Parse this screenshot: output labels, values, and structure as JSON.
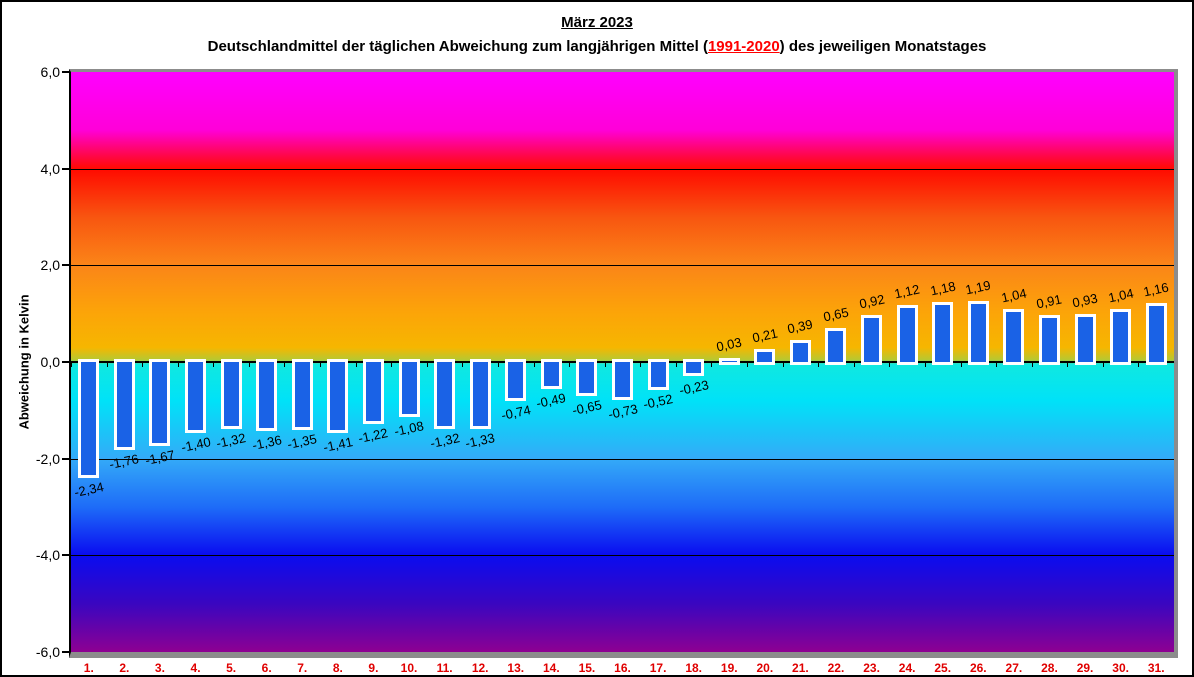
{
  "header": {
    "title": "März 2023",
    "subtitle_prefix": "Deutschlandmittel der täglichen Abweichung zum langjährigen Mittel (",
    "subtitle_highlight": "1991-2020",
    "subtitle_suffix": ") des jeweiligen Monatstages"
  },
  "chart_data": {
    "type": "bar",
    "title": "März 2023",
    "subtitle": "Deutschlandmittel der täglichen Abweichung zum langjährigen Mittel (1991-2020) des jeweiligen Monatstages",
    "xlabel": "",
    "ylabel": "Abweichung in Kelvin",
    "ylim": [
      -6.0,
      6.0
    ],
    "y_ticks": [
      {
        "value": 6,
        "label": "6,0"
      },
      {
        "value": 4,
        "label": "4,0"
      },
      {
        "value": 2,
        "label": "2,0"
      },
      {
        "value": 0,
        "label": "0,0"
      },
      {
        "value": -2,
        "label": "-2,0"
      },
      {
        "value": -4,
        "label": "-4,0"
      },
      {
        "value": -6,
        "label": "-6,0"
      }
    ],
    "grid_values": [
      4,
      2,
      -2,
      -4
    ],
    "categories": [
      "1.",
      "2.",
      "3.",
      "4.",
      "5.",
      "6.",
      "7.",
      "8.",
      "9.",
      "10.",
      "11.",
      "12.",
      "13.",
      "14.",
      "15.",
      "16.",
      "17.",
      "18.",
      "19.",
      "20.",
      "21.",
      "22.",
      "23.",
      "24.",
      "25.",
      "26.",
      "27.",
      "28.",
      "29.",
      "30.",
      "31."
    ],
    "values": [
      -2.34,
      -1.76,
      -1.67,
      -1.4,
      -1.32,
      -1.36,
      -1.35,
      -1.41,
      -1.22,
      -1.08,
      -1.32,
      -1.33,
      -0.74,
      -0.49,
      -0.65,
      -0.73,
      -0.52,
      -0.23,
      0.03,
      0.21,
      0.39,
      0.65,
      0.92,
      1.12,
      1.18,
      1.19,
      1.04,
      0.91,
      0.93,
      1.04,
      1.16
    ],
    "value_labels": [
      "-2,34",
      "-1,76",
      "-1,67",
      "-1,40",
      "-1,32",
      "-1,36",
      "-1,35",
      "-1,41",
      "-1,22",
      "-1,08",
      "-1,32",
      "-1,33",
      "-0,74",
      "-0,49",
      "-0,65",
      "-0,73",
      "-0,52",
      "-0,23",
      "0,03",
      "0,21",
      "0,39",
      "0,65",
      "0,92",
      "1,12",
      "1,18",
      "1,19",
      "1,04",
      "0,91",
      "0,93",
      "1,04",
      "1,16"
    ],
    "legend": null,
    "grid": "horizontal",
    "colors": {
      "bar_fill": "#1a62e6",
      "bar_border": "#ffffff",
      "day_label": "#e00000",
      "axis": "#000000",
      "plot_border": "#8c8c8c",
      "title_highlight": "#ff0000"
    },
    "background_gradient_stops": [
      [
        "0%",
        "#FF00FF"
      ],
      [
        "10%",
        "#FF00D8"
      ],
      [
        "16.7%",
        "#FF0A00"
      ],
      [
        "25%",
        "#F85510"
      ],
      [
        "33.3%",
        "#FB8518"
      ],
      [
        "41.7%",
        "#FCA508"
      ],
      [
        "47.5%",
        "#F6B600"
      ],
      [
        "49.6%",
        "#B8C830"
      ],
      [
        "50.4%",
        "#10E8E0"
      ],
      [
        "56.7%",
        "#00E2F8"
      ],
      [
        "66.7%",
        "#34AAF8"
      ],
      [
        "75%",
        "#1E6CF8"
      ],
      [
        "83.3%",
        "#0A0CF0"
      ],
      [
        "91.7%",
        "#3A06C0"
      ],
      [
        "100%",
        "#8E0092"
      ]
    ]
  }
}
